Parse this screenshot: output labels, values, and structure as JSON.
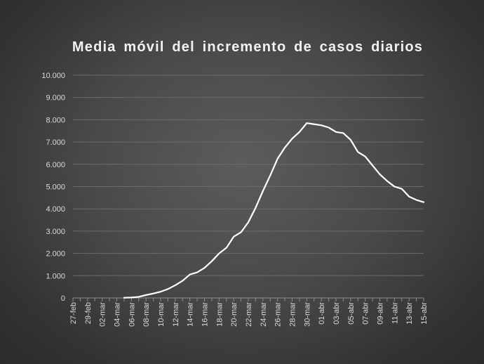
{
  "chart_data": {
    "type": "line",
    "title": "Media móvil del incremento de casos diarios",
    "xlabel": "",
    "ylabel": "",
    "ylim": [
      0,
      10000
    ],
    "yticks": [
      "0",
      "1.000",
      "2.000",
      "3.000",
      "4.000",
      "5.000",
      "6.000",
      "7.000",
      "8.000",
      "9.000",
      "10.000"
    ],
    "grid": true,
    "legend": "none",
    "x_tick_labels": [
      "27-feb",
      "29-feb",
      "02-mar",
      "04-mar",
      "06-mar",
      "08-mar",
      "10-mar",
      "12-mar",
      "14-mar",
      "16-mar",
      "18-mar",
      "20-mar",
      "22-mar",
      "24-mar",
      "26-mar",
      "28-mar",
      "30-mar",
      "01-abr",
      "03-abr",
      "05-abr",
      "07-abr",
      "09-abr",
      "11-abr",
      "13-abr",
      "15-abr"
    ],
    "categories": [
      "27-feb",
      "28-feb",
      "29-feb",
      "01-mar",
      "02-mar",
      "03-mar",
      "04-mar",
      "05-mar",
      "06-mar",
      "07-mar",
      "08-mar",
      "09-mar",
      "10-mar",
      "11-mar",
      "12-mar",
      "13-mar",
      "14-mar",
      "15-mar",
      "16-mar",
      "17-mar",
      "18-mar",
      "19-mar",
      "20-mar",
      "21-mar",
      "22-mar",
      "23-mar",
      "24-mar",
      "25-mar",
      "26-mar",
      "27-mar",
      "28-mar",
      "29-mar",
      "30-mar",
      "31-mar",
      "01-abr",
      "02-abr",
      "03-abr",
      "04-abr",
      "05-abr",
      "06-abr",
      "07-abr",
      "08-abr",
      "09-abr",
      "10-abr",
      "11-abr",
      "12-abr",
      "13-abr",
      "14-abr",
      "15-abr"
    ],
    "series": [
      {
        "values": [
          null,
          null,
          null,
          null,
          null,
          null,
          null,
          10,
          20,
          50,
          130,
          200,
          280,
          400,
          570,
          770,
          1050,
          1150,
          1350,
          1650,
          2000,
          2250,
          2750,
          2950,
          3400,
          4050,
          4800,
          5500,
          6250,
          6750,
          7150,
          7450,
          7850,
          7800,
          7750,
          7650,
          7450,
          7400,
          7100,
          6550,
          6350,
          5950,
          5550,
          5250,
          5000,
          4900,
          4550,
          4400,
          4300
        ],
        "color": "#ffffff"
      }
    ]
  }
}
